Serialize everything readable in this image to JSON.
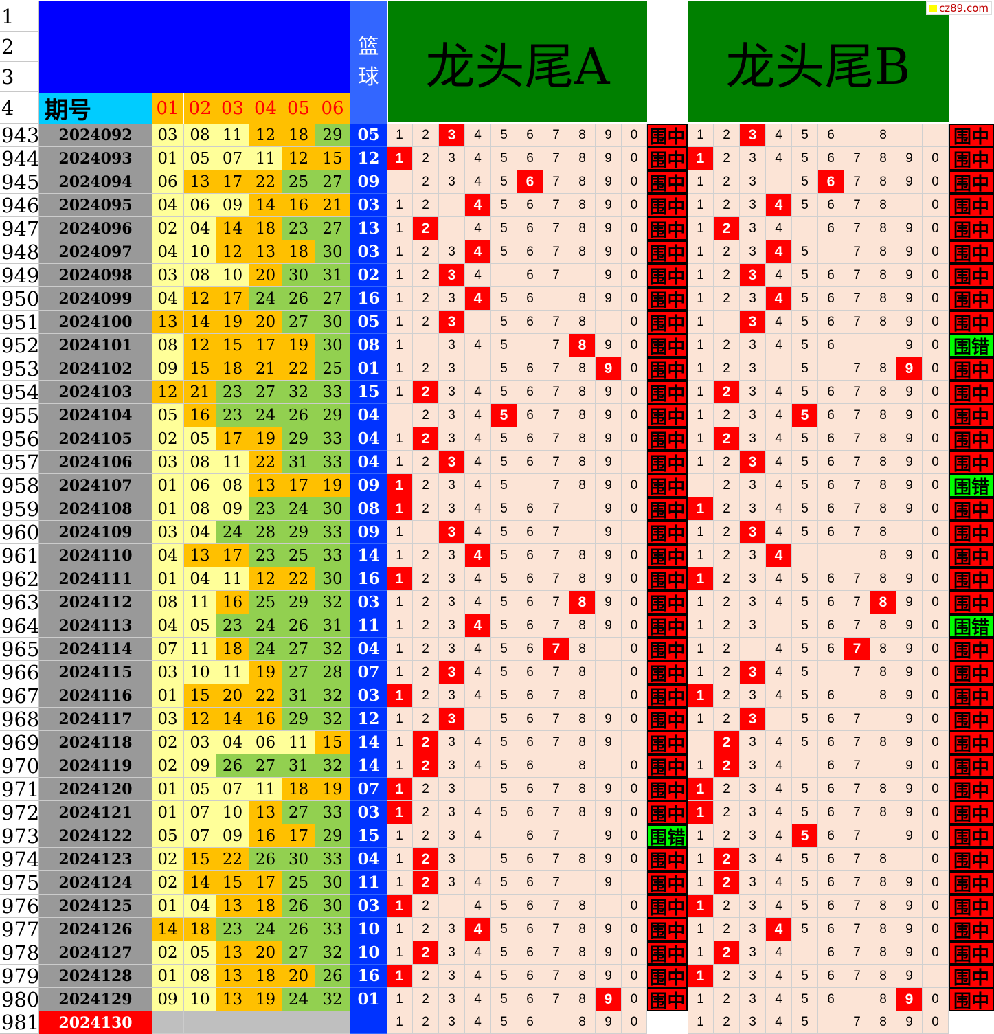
{
  "header": {
    "row_labels": [
      "1",
      "2",
      "3",
      "4"
    ],
    "qihao_label": "期号",
    "ball_headers": [
      "01",
      "02",
      "03",
      "04",
      "05",
      "06"
    ],
    "lanqiu_label": [
      "篮",
      "球"
    ],
    "title_a": "龙头尾A",
    "title_b": "龙头尾B",
    "watermark": "cz89.com"
  },
  "colors": {
    "yellow": "#ffff99",
    "orange": "#ffc000",
    "green": "#92d050",
    "hit_red": "#ff0000",
    "miss_green": "#00ff00",
    "digit_bg": "#fce4d6",
    "blue_ball": "#0033ff"
  },
  "result_labels": {
    "hit": "围中",
    "miss": "围错"
  },
  "rows": [
    {
      "row": "943",
      "period": "2024092",
      "balls": [
        "03",
        "08",
        "11",
        "12",
        "18",
        "29"
      ],
      "colors": [
        "y",
        "y",
        "y",
        "o",
        "o",
        "g"
      ],
      "blue": "05",
      "a_blank": [],
      "a_hit": "3",
      "a_res": "hit",
      "b_blank": [
        "7",
        "9",
        "0"
      ],
      "b_hit": "3",
      "b_res": "hit"
    },
    {
      "row": "944",
      "period": "2024093",
      "balls": [
        "01",
        "05",
        "07",
        "11",
        "12",
        "15"
      ],
      "colors": [
        "y",
        "y",
        "y",
        "y",
        "o",
        "o"
      ],
      "blue": "12",
      "a_blank": [],
      "a_hit": "1",
      "a_res": "hit",
      "b_blank": [],
      "b_hit": "1",
      "b_res": "hit"
    },
    {
      "row": "945",
      "period": "2024094",
      "balls": [
        "06",
        "13",
        "17",
        "22",
        "25",
        "27"
      ],
      "colors": [
        "y",
        "o",
        "o",
        "o",
        "g",
        "g"
      ],
      "blue": "09",
      "a_blank": [
        "1"
      ],
      "a_hit": "6",
      "a_res": "hit",
      "b_blank": [
        "4"
      ],
      "b_hit": "6",
      "b_res": "hit"
    },
    {
      "row": "946",
      "period": "2024095",
      "balls": [
        "04",
        "06",
        "09",
        "14",
        "16",
        "21"
      ],
      "colors": [
        "y",
        "y",
        "y",
        "o",
        "o",
        "o"
      ],
      "blue": "03",
      "a_blank": [
        "3"
      ],
      "a_hit": "4",
      "a_res": "hit",
      "b_blank": [
        "9"
      ],
      "b_hit": "4",
      "b_res": "hit"
    },
    {
      "row": "947",
      "period": "2024096",
      "balls": [
        "02",
        "04",
        "14",
        "18",
        "23",
        "27"
      ],
      "colors": [
        "y",
        "y",
        "o",
        "o",
        "g",
        "g"
      ],
      "blue": "13",
      "a_blank": [
        "3"
      ],
      "a_hit": "2",
      "a_res": "hit",
      "b_blank": [
        "5"
      ],
      "b_hit": "2",
      "b_res": "hit"
    },
    {
      "row": "948",
      "period": "2024097",
      "balls": [
        "04",
        "10",
        "12",
        "13",
        "18",
        "30"
      ],
      "colors": [
        "y",
        "y",
        "o",
        "o",
        "o",
        "g"
      ],
      "blue": "03",
      "a_blank": [],
      "a_hit": "4",
      "a_res": "hit",
      "b_blank": [
        "6"
      ],
      "b_hit": "4",
      "b_res": "hit"
    },
    {
      "row": "949",
      "period": "2024098",
      "balls": [
        "03",
        "08",
        "10",
        "20",
        "30",
        "31"
      ],
      "colors": [
        "y",
        "y",
        "y",
        "o",
        "g",
        "g"
      ],
      "blue": "02",
      "a_blank": [
        "5",
        "8"
      ],
      "a_hit": "3",
      "a_res": "hit",
      "b_blank": [],
      "b_hit": "3",
      "b_res": "hit"
    },
    {
      "row": "950",
      "period": "2024099",
      "balls": [
        "04",
        "12",
        "17",
        "24",
        "26",
        "27"
      ],
      "colors": [
        "y",
        "o",
        "o",
        "g",
        "g",
        "g"
      ],
      "blue": "16",
      "a_blank": [
        "7"
      ],
      "a_hit": "4",
      "a_res": "hit",
      "b_blank": [],
      "b_hit": "4",
      "b_res": "hit"
    },
    {
      "row": "951",
      "period": "2024100",
      "balls": [
        "13",
        "14",
        "19",
        "20",
        "27",
        "30"
      ],
      "colors": [
        "o",
        "o",
        "o",
        "o",
        "g",
        "g"
      ],
      "blue": "05",
      "a_blank": [
        "4",
        "9"
      ],
      "a_hit": "3",
      "a_res": "hit",
      "b_blank": [
        "2"
      ],
      "b_hit": "3",
      "b_res": "hit"
    },
    {
      "row": "952",
      "period": "2024101",
      "balls": [
        "08",
        "12",
        "15",
        "17",
        "19",
        "30"
      ],
      "colors": [
        "y",
        "o",
        "o",
        "o",
        "o",
        "g"
      ],
      "blue": "08",
      "a_blank": [
        "2",
        "6"
      ],
      "a_hit": "8",
      "a_res": "hit",
      "b_blank": [
        "7",
        "8"
      ],
      "b_hit": "",
      "b_res": "miss"
    },
    {
      "row": "953",
      "period": "2024102",
      "balls": [
        "09",
        "15",
        "18",
        "21",
        "22",
        "25"
      ],
      "colors": [
        "y",
        "o",
        "o",
        "o",
        "o",
        "g"
      ],
      "blue": "01",
      "a_blank": [
        "4"
      ],
      "a_hit": "9",
      "a_res": "hit",
      "b_blank": [
        "4",
        "6"
      ],
      "b_hit": "9",
      "b_res": "hit"
    },
    {
      "row": "954",
      "period": "2024103",
      "balls": [
        "12",
        "21",
        "23",
        "27",
        "32",
        "33"
      ],
      "colors": [
        "o",
        "o",
        "g",
        "g",
        "g",
        "g"
      ],
      "blue": "15",
      "a_blank": [],
      "a_hit": "2",
      "a_res": "hit",
      "b_blank": [],
      "b_hit": "2",
      "b_res": "hit"
    },
    {
      "row": "955",
      "period": "2024104",
      "balls": [
        "05",
        "16",
        "23",
        "24",
        "26",
        "29"
      ],
      "colors": [
        "y",
        "o",
        "g",
        "g",
        "g",
        "g"
      ],
      "blue": "04",
      "a_blank": [
        "1"
      ],
      "a_hit": "5",
      "a_res": "hit",
      "b_blank": [],
      "b_hit": "5",
      "b_res": "hit"
    },
    {
      "row": "956",
      "period": "2024105",
      "balls": [
        "02",
        "05",
        "17",
        "19",
        "29",
        "33"
      ],
      "colors": [
        "y",
        "y",
        "o",
        "o",
        "g",
        "g"
      ],
      "blue": "04",
      "a_blank": [],
      "a_hit": "2",
      "a_res": "hit",
      "b_blank": [],
      "b_hit": "2",
      "b_res": "hit"
    },
    {
      "row": "957",
      "period": "2024106",
      "balls": [
        "03",
        "08",
        "11",
        "22",
        "31",
        "33"
      ],
      "colors": [
        "y",
        "y",
        "y",
        "o",
        "g",
        "g"
      ],
      "blue": "04",
      "a_blank": [
        "0"
      ],
      "a_hit": "3",
      "a_res": "hit",
      "b_blank": [],
      "b_hit": "3",
      "b_res": "hit"
    },
    {
      "row": "958",
      "period": "2024107",
      "balls": [
        "01",
        "06",
        "08",
        "13",
        "17",
        "19"
      ],
      "colors": [
        "y",
        "y",
        "y",
        "o",
        "o",
        "o"
      ],
      "blue": "09",
      "a_blank": [
        "6"
      ],
      "a_hit": "1",
      "a_res": "hit",
      "b_blank": [
        "1"
      ],
      "b_hit": "",
      "b_res": "miss"
    },
    {
      "row": "959",
      "period": "2024108",
      "balls": [
        "01",
        "08",
        "09",
        "23",
        "24",
        "30"
      ],
      "colors": [
        "y",
        "y",
        "y",
        "g",
        "g",
        "g"
      ],
      "blue": "08",
      "a_blank": [
        "8"
      ],
      "a_hit": "1",
      "a_res": "hit",
      "b_blank": [],
      "b_hit": "1",
      "b_res": "hit"
    },
    {
      "row": "960",
      "period": "2024109",
      "balls": [
        "03",
        "04",
        "24",
        "28",
        "29",
        "33"
      ],
      "colors": [
        "y",
        "y",
        "g",
        "g",
        "g",
        "g"
      ],
      "blue": "09",
      "a_blank": [
        "2",
        "8",
        "0"
      ],
      "a_hit": "3",
      "a_res": "hit",
      "b_blank": [
        "9"
      ],
      "b_hit": "3",
      "b_res": "hit"
    },
    {
      "row": "961",
      "period": "2024110",
      "balls": [
        "04",
        "13",
        "17",
        "23",
        "25",
        "33"
      ],
      "colors": [
        "y",
        "o",
        "o",
        "g",
        "g",
        "g"
      ],
      "blue": "14",
      "a_blank": [],
      "a_hit": "4",
      "a_res": "hit",
      "b_blank": [
        "5",
        "6",
        "7"
      ],
      "b_hit": "4",
      "b_res": "hit"
    },
    {
      "row": "962",
      "period": "2024111",
      "balls": [
        "01",
        "04",
        "11",
        "12",
        "22",
        "30"
      ],
      "colors": [
        "y",
        "y",
        "y",
        "o",
        "o",
        "g"
      ],
      "blue": "16",
      "a_blank": [],
      "a_hit": "1",
      "a_res": "hit",
      "b_blank": [],
      "b_hit": "1",
      "b_res": "hit"
    },
    {
      "row": "963",
      "period": "2024112",
      "balls": [
        "08",
        "11",
        "16",
        "25",
        "29",
        "32"
      ],
      "colors": [
        "y",
        "y",
        "o",
        "g",
        "g",
        "g"
      ],
      "blue": "03",
      "a_blank": [],
      "a_hit": "8",
      "a_res": "hit",
      "b_blank": [],
      "b_hit": "8",
      "b_res": "hit"
    },
    {
      "row": "964",
      "period": "2024113",
      "balls": [
        "04",
        "05",
        "23",
        "24",
        "26",
        "31"
      ],
      "colors": [
        "y",
        "y",
        "g",
        "g",
        "g",
        "g"
      ],
      "blue": "11",
      "a_blank": [],
      "a_hit": "4",
      "a_res": "hit",
      "b_blank": [
        "4"
      ],
      "b_hit": "",
      "b_res": "miss"
    },
    {
      "row": "965",
      "period": "2024114",
      "balls": [
        "07",
        "11",
        "18",
        "24",
        "27",
        "32"
      ],
      "colors": [
        "y",
        "y",
        "o",
        "g",
        "g",
        "g"
      ],
      "blue": "04",
      "a_blank": [
        "9"
      ],
      "a_hit": "7",
      "a_res": "hit",
      "b_blank": [
        "3"
      ],
      "b_hit": "7",
      "b_res": "hit"
    },
    {
      "row": "966",
      "period": "2024115",
      "balls": [
        "03",
        "10",
        "11",
        "19",
        "27",
        "28"
      ],
      "colors": [
        "y",
        "y",
        "y",
        "o",
        "g",
        "g"
      ],
      "blue": "07",
      "a_blank": [
        "9"
      ],
      "a_hit": "3",
      "a_res": "hit",
      "b_blank": [
        "6"
      ],
      "b_hit": "3",
      "b_res": "hit"
    },
    {
      "row": "967",
      "period": "2024116",
      "balls": [
        "01",
        "15",
        "20",
        "22",
        "31",
        "32"
      ],
      "colors": [
        "y",
        "o",
        "o",
        "o",
        "g",
        "g"
      ],
      "blue": "03",
      "a_blank": [
        "9"
      ],
      "a_hit": "1",
      "a_res": "hit",
      "b_blank": [
        "7"
      ],
      "b_hit": "1",
      "b_res": "hit"
    },
    {
      "row": "968",
      "period": "2024117",
      "balls": [
        "03",
        "12",
        "14",
        "16",
        "29",
        "32"
      ],
      "colors": [
        "y",
        "o",
        "o",
        "o",
        "g",
        "g"
      ],
      "blue": "12",
      "a_blank": [
        "4"
      ],
      "a_hit": "3",
      "a_res": "hit",
      "b_blank": [
        "4",
        "8"
      ],
      "b_hit": "3",
      "b_res": "hit"
    },
    {
      "row": "969",
      "period": "2024118",
      "balls": [
        "02",
        "03",
        "04",
        "06",
        "11",
        "15"
      ],
      "colors": [
        "y",
        "y",
        "y",
        "y",
        "y",
        "o"
      ],
      "blue": "14",
      "a_blank": [
        "0"
      ],
      "a_hit": "2",
      "a_res": "hit",
      "b_blank": [
        "1"
      ],
      "b_hit": "2",
      "b_res": "hit"
    },
    {
      "row": "970",
      "period": "2024119",
      "balls": [
        "02",
        "09",
        "26",
        "27",
        "31",
        "32"
      ],
      "colors": [
        "y",
        "y",
        "g",
        "g",
        "g",
        "g"
      ],
      "blue": "14",
      "a_blank": [
        "7",
        "9"
      ],
      "a_hit": "2",
      "a_res": "hit",
      "b_blank": [
        "5",
        "8"
      ],
      "b_hit": "2",
      "b_res": "hit"
    },
    {
      "row": "971",
      "period": "2024120",
      "balls": [
        "01",
        "05",
        "07",
        "11",
        "18",
        "19"
      ],
      "colors": [
        "y",
        "y",
        "y",
        "y",
        "o",
        "o"
      ],
      "blue": "07",
      "a_blank": [
        "4"
      ],
      "a_hit": "1",
      "a_res": "hit",
      "b_blank": [],
      "b_hit": "1",
      "b_res": "hit"
    },
    {
      "row": "972",
      "period": "2024121",
      "balls": [
        "01",
        "07",
        "10",
        "13",
        "27",
        "33"
      ],
      "colors": [
        "y",
        "y",
        "y",
        "o",
        "g",
        "g"
      ],
      "blue": "03",
      "a_blank": [],
      "a_hit": "1",
      "a_res": "hit",
      "b_blank": [],
      "b_hit": "1",
      "b_res": "hit"
    },
    {
      "row": "973",
      "period": "2024122",
      "balls": [
        "05",
        "07",
        "09",
        "16",
        "17",
        "29"
      ],
      "colors": [
        "y",
        "y",
        "y",
        "o",
        "o",
        "g"
      ],
      "blue": "15",
      "a_blank": [
        "5",
        "8"
      ],
      "a_hit": "",
      "a_res": "miss",
      "b_blank": [
        "8"
      ],
      "b_hit": "5",
      "b_res": "hit"
    },
    {
      "row": "974",
      "period": "2024123",
      "balls": [
        "02",
        "15",
        "22",
        "26",
        "30",
        "33"
      ],
      "colors": [
        "y",
        "o",
        "o",
        "g",
        "g",
        "g"
      ],
      "blue": "04",
      "a_blank": [
        "4"
      ],
      "a_hit": "2",
      "a_res": "hit",
      "b_blank": [
        "9"
      ],
      "b_hit": "2",
      "b_res": "hit"
    },
    {
      "row": "975",
      "period": "2024124",
      "balls": [
        "02",
        "14",
        "15",
        "17",
        "25",
        "30"
      ],
      "colors": [
        "y",
        "o",
        "o",
        "o",
        "g",
        "g"
      ],
      "blue": "11",
      "a_blank": [
        "8",
        "0"
      ],
      "a_hit": "2",
      "a_res": "hit",
      "b_blank": [],
      "b_hit": "2",
      "b_res": "hit"
    },
    {
      "row": "976",
      "period": "2024125",
      "balls": [
        "01",
        "04",
        "13",
        "18",
        "26",
        "30"
      ],
      "colors": [
        "y",
        "y",
        "o",
        "o",
        "g",
        "g"
      ],
      "blue": "03",
      "a_blank": [
        "3",
        "9"
      ],
      "a_hit": "1",
      "a_res": "hit",
      "b_blank": [],
      "b_hit": "1",
      "b_res": "hit"
    },
    {
      "row": "977",
      "period": "2024126",
      "balls": [
        "14",
        "18",
        "23",
        "24",
        "26",
        "33"
      ],
      "colors": [
        "o",
        "o",
        "g",
        "g",
        "g",
        "g"
      ],
      "blue": "10",
      "a_blank": [],
      "a_hit": "4",
      "a_res": "hit",
      "b_blank": [],
      "b_hit": "4",
      "b_res": "hit"
    },
    {
      "row": "978",
      "period": "2024127",
      "balls": [
        "02",
        "05",
        "13",
        "20",
        "27",
        "32"
      ],
      "colors": [
        "y",
        "y",
        "o",
        "o",
        "g",
        "g"
      ],
      "blue": "10",
      "a_blank": [],
      "a_hit": "2",
      "a_res": "hit",
      "b_blank": [
        "5"
      ],
      "b_hit": "2",
      "b_res": "hit"
    },
    {
      "row": "979",
      "period": "2024128",
      "balls": [
        "01",
        "08",
        "13",
        "18",
        "20",
        "26"
      ],
      "colors": [
        "y",
        "y",
        "o",
        "o",
        "o",
        "g"
      ],
      "blue": "16",
      "a_blank": [],
      "a_hit": "1",
      "a_res": "hit",
      "b_blank": [
        "0"
      ],
      "b_hit": "1",
      "b_res": "hit"
    },
    {
      "row": "980",
      "period": "2024129",
      "balls": [
        "09",
        "10",
        "13",
        "19",
        "24",
        "32"
      ],
      "colors": [
        "y",
        "y",
        "o",
        "o",
        "g",
        "g"
      ],
      "blue": "01",
      "a_blank": [],
      "a_hit": "9",
      "a_res": "hit",
      "b_blank": [
        "7"
      ],
      "b_hit": "9",
      "b_res": "hit"
    },
    {
      "row": "981",
      "period": "2024130",
      "balls": [
        "",
        "",
        "",
        "",
        "",
        ""
      ],
      "colors": [
        "gray",
        "gray",
        "gray",
        "gray",
        "gray",
        "gray"
      ],
      "blue": "",
      "a_blank": [
        "7"
      ],
      "a_hit": "",
      "a_res": "",
      "b_blank": [
        "6"
      ],
      "b_hit": "",
      "b_res": "",
      "is_new": true
    }
  ]
}
